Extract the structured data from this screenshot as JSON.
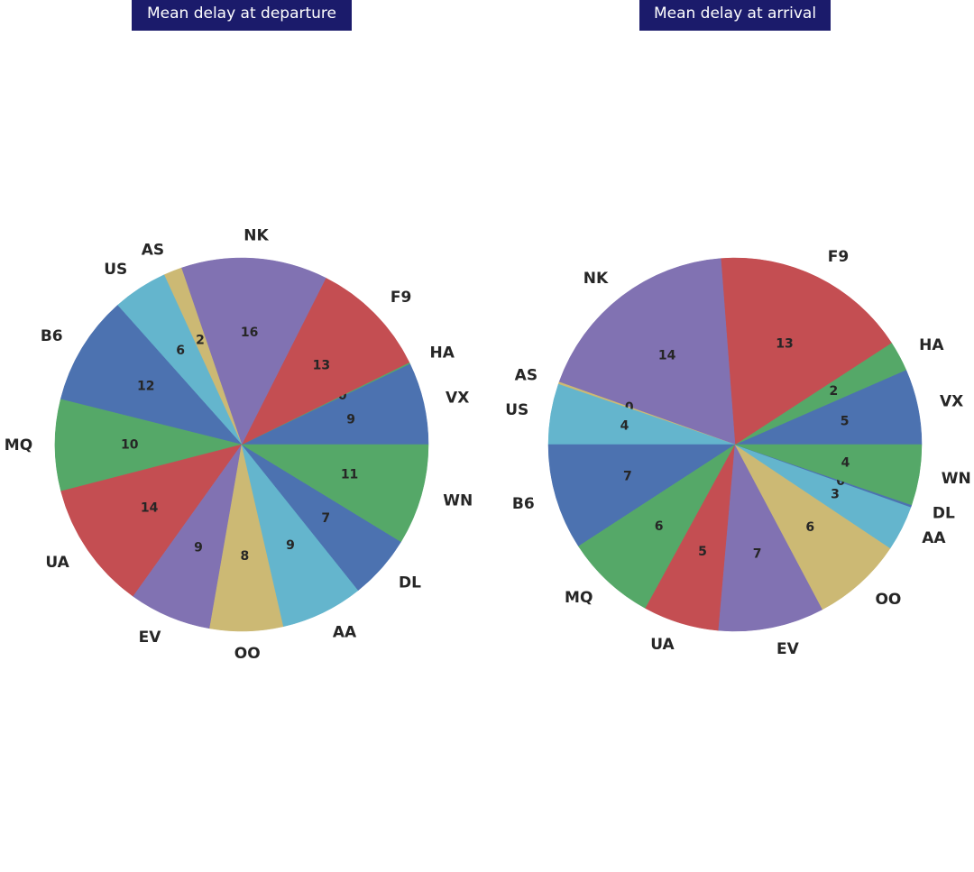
{
  "chart_data": [
    {
      "type": "pie",
      "title": "Mean delay at departure",
      "slices": [
        {
          "label": "VX",
          "value": 9,
          "color": "#4c72b0"
        },
        {
          "label": "HA",
          "value": 0,
          "color": "#55a868"
        },
        {
          "label": "F9",
          "value": 13,
          "color": "#c44e52"
        },
        {
          "label": "NK",
          "value": 16,
          "color": "#8172b2"
        },
        {
          "label": "AS",
          "value": 2,
          "color": "#ccb974"
        },
        {
          "label": "US",
          "value": 6,
          "color": "#64b5cd"
        },
        {
          "label": "B6",
          "value": 12,
          "color": "#4c72b0"
        },
        {
          "label": "MQ",
          "value": 10,
          "color": "#55a868"
        },
        {
          "label": "UA",
          "value": 14,
          "color": "#c44e52"
        },
        {
          "label": "EV",
          "value": 9,
          "color": "#8172b2"
        },
        {
          "label": "OO",
          "value": 8,
          "color": "#ccb974"
        },
        {
          "label": "AA",
          "value": 9,
          "color": "#64b5cd"
        },
        {
          "label": "DL",
          "value": 7,
          "color": "#4c72b0"
        },
        {
          "label": "WN",
          "value": 11,
          "color": "#55a868"
        }
      ]
    },
    {
      "type": "pie",
      "title": "Mean delay at arrival",
      "slices": [
        {
          "label": "VX",
          "value": 5,
          "color": "#4c72b0"
        },
        {
          "label": "HA",
          "value": 2,
          "color": "#55a868"
        },
        {
          "label": "F9",
          "value": 13,
          "color": "#c44e52"
        },
        {
          "label": "NK",
          "value": 14,
          "color": "#8172b2"
        },
        {
          "label": "AS",
          "value": 0,
          "color": "#ccb974"
        },
        {
          "label": "US",
          "value": 4,
          "color": "#64b5cd"
        },
        {
          "label": "B6",
          "value": 7,
          "color": "#4c72b0"
        },
        {
          "label": "MQ",
          "value": 6,
          "color": "#55a868"
        },
        {
          "label": "UA",
          "value": 5,
          "color": "#c44e52"
        },
        {
          "label": "EV",
          "value": 7,
          "color": "#8172b2"
        },
        {
          "label": "OO",
          "value": 6,
          "color": "#ccb974"
        },
        {
          "label": "AA",
          "value": 3,
          "color": "#64b5cd"
        },
        {
          "label": "DL",
          "value": 0,
          "color": "#4c72b0"
        },
        {
          "label": "WN",
          "value": 4,
          "color": "#55a868"
        }
      ]
    }
  ]
}
